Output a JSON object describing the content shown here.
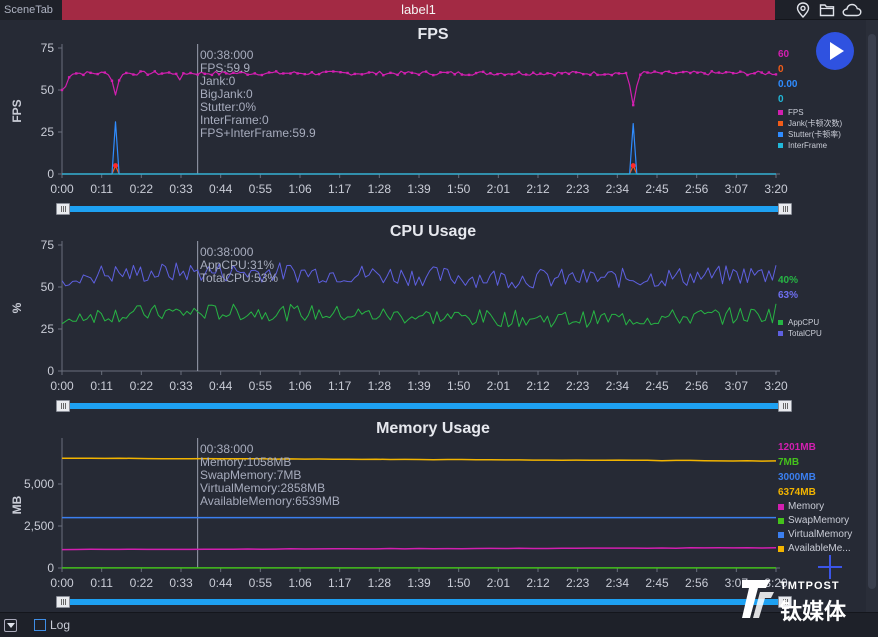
{
  "topbar": {
    "scene_tab": "SceneTab",
    "active_tab": "label1",
    "icons": [
      "location-pin-icon",
      "folder-icon",
      "cloud-icon"
    ]
  },
  "x_ticks": [
    "0:00",
    "0:11",
    "0:22",
    "0:33",
    "0:44",
    "0:55",
    "1:06",
    "1:17",
    "1:28",
    "1:39",
    "1:50",
    "2:01",
    "2:12",
    "2:23",
    "2:34",
    "2:45",
    "2:56",
    "3:07",
    "3:20"
  ],
  "fps_panel": {
    "title": "FPS",
    "ylabel": "FPS",
    "tooltip": [
      "00:38:000",
      "FPS:59.9",
      "Jank:0",
      "BigJank:0",
      "Stutter:0%",
      "InterFrame:0",
      "FPS+InterFrame:59.9"
    ],
    "legend_values": [
      {
        "text": "60",
        "color": "#d21fb0"
      },
      {
        "text": "0",
        "color": "#f25c19"
      },
      {
        "text": "0.00",
        "color": "#2f8cff"
      },
      {
        "text": "0",
        "color": "#21b8d9"
      }
    ],
    "legend_items": [
      {
        "label": "FPS",
        "color": "#d21fb0"
      },
      {
        "label": "Jank(卡顿次数)",
        "color": "#f25c19"
      },
      {
        "label": "Stutter(卡顿率)",
        "color": "#2f8cff"
      },
      {
        "label": "InterFrame",
        "color": "#21b8d9"
      }
    ]
  },
  "cpu_panel": {
    "title": "CPU Usage",
    "ylabel": "%",
    "tooltip": [
      "00:38:000",
      "AppCPU:31%",
      "TotalCPU:53%"
    ],
    "legend_values": [
      {
        "text": "40%",
        "color": "#26b544"
      },
      {
        "text": "63%",
        "color": "#6e6ff0"
      }
    ],
    "legend_items": [
      {
        "label": "AppCPU",
        "color": "#26b544"
      },
      {
        "label": "TotalCPU",
        "color": "#5e60e0"
      }
    ]
  },
  "mem_panel": {
    "title": "Memory Usage",
    "ylabel": "MB",
    "tooltip": [
      "00:38:000",
      "Memory:1058MB",
      "SwapMemory:7MB",
      "VirtualMemory:2858MB",
      "AvailableMemory:6539MB"
    ],
    "legend_values": [
      {
        "text": "1201MB",
        "color": "#d21fb0"
      },
      {
        "text": "7MB",
        "color": "#45c21c"
      },
      {
        "text": "3000MB",
        "color": "#3b7ff0"
      },
      {
        "text": "6374MB",
        "color": "#f2b400"
      }
    ],
    "legend_items": [
      {
        "label": "Memory",
        "color": "#d21fb0"
      },
      {
        "label": "SwapMemory",
        "color": "#45c21c"
      },
      {
        "label": "VirtualMemory",
        "color": "#3b7ff0"
      },
      {
        "label": "AvailableMe...",
        "color": "#f2b400"
      }
    ]
  },
  "bottombar": {
    "log_label": "Log"
  },
  "watermark": {
    "en": "TMTPOST",
    "cn": "钛媒体"
  },
  "chart_data": [
    {
      "type": "line",
      "title": "FPS",
      "ylabel": "FPS",
      "ylim": [
        0,
        75
      ],
      "yticks": [
        "0",
        "25",
        "50",
        "75"
      ],
      "x_range_seconds": [
        0,
        200
      ],
      "series": [
        {
          "name": "FPS",
          "color": "#d21fb0",
          "base": 60,
          "dips": [
            [
              1,
              52
            ],
            [
              15,
              47
            ],
            [
              33,
              56
            ],
            [
              160,
              41
            ]
          ]
        },
        {
          "name": "Jank(卡顿次数)",
          "color": "#f25c19",
          "points": [
            [
              0,
              0
            ],
            [
              14,
              0
            ],
            [
              15,
              5
            ],
            [
              16,
              0
            ],
            [
              159,
              0
            ],
            [
              160,
              5
            ],
            [
              161,
              0
            ],
            [
              200,
              0
            ]
          ]
        },
        {
          "name": "Stutter(卡顿率)",
          "color": "#2f8cff",
          "points": [
            [
              0,
              0
            ],
            [
              14,
              0
            ],
            [
              15,
              31
            ],
            [
              16,
              0
            ],
            [
              159,
              0
            ],
            [
              160,
              30
            ],
            [
              161,
              0
            ],
            [
              200,
              0
            ]
          ]
        },
        {
          "name": "InterFrame",
          "color": "#21b8d9",
          "points": [
            [
              0,
              0
            ],
            [
              200,
              0
            ]
          ]
        }
      ]
    },
    {
      "type": "line",
      "title": "CPU Usage",
      "ylabel": "%",
      "ylim": [
        0,
        75
      ],
      "yticks": [
        "0",
        "25",
        "50",
        "75"
      ],
      "x_range_seconds": [
        0,
        200
      ],
      "series": [
        {
          "name": "AppCPU",
          "color": "#26b544",
          "level": 33,
          "last": 40
        },
        {
          "name": "TotalCPU",
          "color": "#5e60e0",
          "level": 57,
          "last": 63
        }
      ]
    },
    {
      "type": "line",
      "title": "Memory Usage",
      "ylabel": "MB",
      "ylim": [
        0,
        7500
      ],
      "yticks": [
        "0",
        "2,500",
        "5,000"
      ],
      "x_range_seconds": [
        0,
        200
      ],
      "series": [
        {
          "name": "Memory",
          "color": "#d21fb0",
          "points": [
            [
              0,
              1100
            ],
            [
              200,
              1201
            ]
          ]
        },
        {
          "name": "SwapMemory",
          "color": "#45c21c",
          "points": [
            [
              0,
              7
            ],
            [
              200,
              7
            ]
          ]
        },
        {
          "name": "VirtualMemory",
          "color": "#3b7ff0",
          "points": [
            [
              0,
              3000
            ],
            [
              200,
              3000
            ]
          ]
        },
        {
          "name": "AvailableMemory",
          "color": "#f2b400",
          "points": [
            [
              0,
              6539
            ],
            [
              200,
              6374
            ]
          ]
        }
      ]
    }
  ]
}
